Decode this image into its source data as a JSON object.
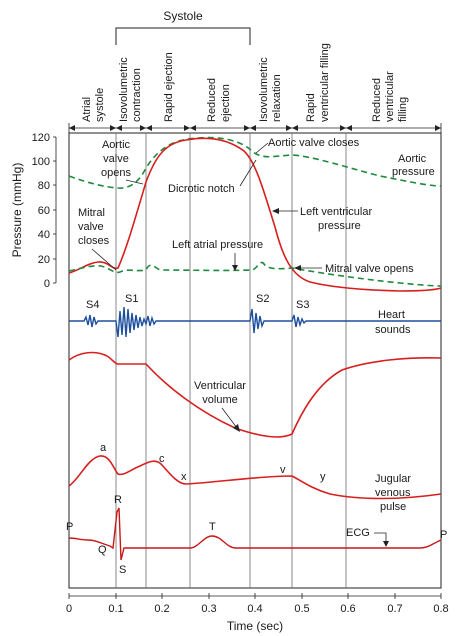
{
  "systole_label": "Systole",
  "phases": {
    "atrial_systole": [
      "Atrial",
      "systole"
    ],
    "isovolumetric_contraction": [
      "Isovolumetric",
      "contraction"
    ],
    "rapid_ejection": "Rapid ejection",
    "reduced_ejection": [
      "Reduced",
      "ejection"
    ],
    "isovolumetric_relaxation": [
      "Isovolumetric",
      "relaxation"
    ],
    "rapid_ventricular_filling": [
      "Rapid",
      "ventricular filling"
    ],
    "reduced_ventricular_filling": [
      "Reduced",
      "ventricular",
      "filling"
    ]
  },
  "y_axis": {
    "label": "Pressure (mmHg)",
    "ticks": [
      "120",
      "100",
      "80",
      "60",
      "40",
      "20",
      "0"
    ]
  },
  "x_axis": {
    "label": "Time (sec)",
    "ticks": [
      "0",
      "0.1",
      "0.2",
      "0.3",
      "0.4",
      "0.5",
      "0.6",
      "0.7",
      "0.8"
    ]
  },
  "pressure_annotations": {
    "aortic_valve_opens": [
      "Aortic",
      "valve",
      "opens"
    ],
    "aortic_valve_closes": "Aortic valve closes",
    "aortic_pressure": [
      "Aortic",
      "pressure"
    ],
    "dicrotic_notch": "Dicrotic notch",
    "left_ventricular_pressure": [
      "Left ventricular",
      "pressure"
    ],
    "mitral_valve_closes": [
      "Mitral",
      "valve",
      "closes"
    ],
    "left_atrial_pressure": "Left atrial pressure",
    "mitral_valve_opens": "Mitral valve opens"
  },
  "heart_sounds": {
    "labels": [
      "S4",
      "S1",
      "S2",
      "S3"
    ],
    "trace_label": [
      "Heart",
      "sounds"
    ]
  },
  "ventricular_volume_label": [
    "Ventricular",
    "volume"
  ],
  "jugular": {
    "waves": [
      "a",
      "c",
      "x",
      "v",
      "y"
    ],
    "trace_label": [
      "Jugular",
      "venous",
      "pulse"
    ]
  },
  "ecg": {
    "waves": [
      "P",
      "Q",
      "R",
      "S",
      "T",
      "P"
    ],
    "label": "ECG"
  },
  "colors": {
    "pressure": "#d81e1e",
    "aortic_pressure": "#1e8a3c",
    "heart_sounds": "#1d4f9e",
    "volume": "#d81e1e",
    "jugular": "#d81e1e",
    "ecg": "#c81818"
  }
}
